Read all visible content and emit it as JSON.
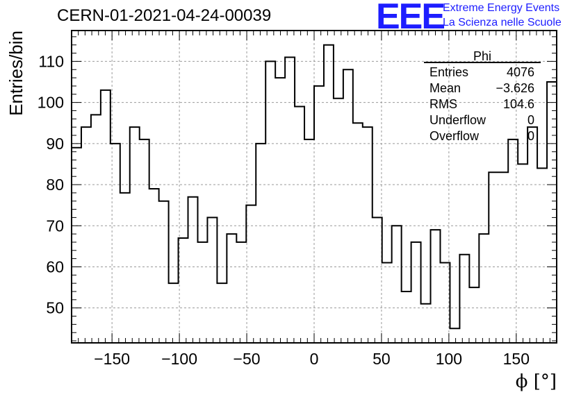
{
  "header": {
    "run_title": "CERN-01-2021-04-24-00039",
    "logo_text": "EEE",
    "brand_line1": "Extreme Energy Events",
    "brand_line2": "La Scienza nelle Scuole"
  },
  "stats_box": {
    "title": "Phi",
    "rows": [
      {
        "label": "Entries",
        "value": "4076"
      },
      {
        "label": "Mean",
        "value": "−3.626"
      },
      {
        "label": "RMS",
        "value": "104.6"
      },
      {
        "label": "Underflow",
        "value": "0"
      },
      {
        "label": "Overflow",
        "value": "0"
      }
    ]
  },
  "chart_data": {
    "type": "histogram",
    "xlabel": "ϕ [°]",
    "ylabel": "Entries/bin",
    "xlim": [
      -180,
      180
    ],
    "ylim": [
      41.5,
      117.5
    ],
    "bin_edges_start": -180,
    "bin_width": 7.2,
    "values": [
      89,
      94,
      97,
      103,
      90,
      78,
      94,
      91,
      79,
      76,
      56,
      67,
      77,
      66,
      72,
      56,
      68,
      66,
      75,
      90,
      110,
      106,
      111,
      99,
      91,
      104,
      114,
      101,
      108,
      95,
      94,
      72,
      61,
      70,
      54,
      66,
      51,
      69,
      61,
      45,
      63,
      55,
      68,
      83,
      83,
      91,
      85,
      94,
      84,
      105
    ],
    "x_ticks": [
      -150,
      -100,
      -50,
      0,
      50,
      100,
      150
    ],
    "x_tick_labels": [
      "−150",
      "−100",
      "−50",
      "0",
      "50",
      "100",
      "150"
    ],
    "y_ticks": [
      50,
      60,
      70,
      80,
      90,
      100,
      110
    ],
    "y_tick_labels": [
      "50",
      "60",
      "70",
      "80",
      "90",
      "100",
      "110"
    ],
    "grid": true,
    "line_color": "#000000"
  }
}
